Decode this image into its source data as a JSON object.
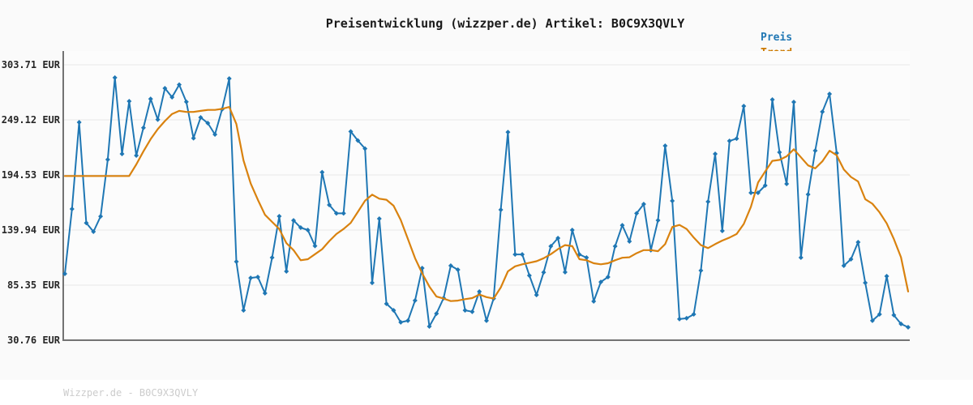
{
  "header": {
    "title": "Preisentwicklung (wizzper.de) Artikel: B0C9X3QVLY"
  },
  "footer": {
    "text": "Wizzper.de - B0C9X3QVLY"
  },
  "colors": {
    "background": "#fafafa",
    "plot_background": "#fcfcfc",
    "price_line": "#1f77b4",
    "trend_line": "#d9820f",
    "legend_price_text": "#1f77b4",
    "legend_trend_text": "#cc7a00",
    "grid": "#e7e7e7",
    "spine": "#737373",
    "title_text": "#1a1a1a",
    "tick_text": "#262626",
    "footer_text": "#cccccc",
    "footer_band": "#ffffff"
  },
  "chart_data": {
    "type": "line",
    "title": "Preisentwicklung (wizzper.de) Artikel: B0C9X3QVLY",
    "xlabel": "",
    "ylabel": "",
    "ylim": [
      30.76,
      303.71
    ],
    "grid": "horizontal",
    "legend_position": "top-right",
    "grid_color": "#e7e7e7",
    "spine_color": "#737373",
    "y_ticks": [
      {
        "label": "303.71 EUR",
        "value": 303.71
      },
      {
        "label": "249.12 EUR",
        "value": 249.12
      },
      {
        "label": "194.53 EUR",
        "value": 194.53
      },
      {
        "label": "139.94 EUR",
        "value": 139.94
      },
      {
        "label": "85.35 EUR",
        "value": 85.35
      },
      {
        "label": "30.76 EUR",
        "value": 30.76
      }
    ],
    "legend": [
      {
        "name": "Preis",
        "color": "#1f77b4"
      },
      {
        "name": "Trend",
        "color": "#cc7a00"
      }
    ],
    "series": [
      {
        "name": "Preis",
        "color": "#1f77b4",
        "width": 2,
        "markers": true,
        "values": [
          96.6,
          160.8,
          246.7,
          147.0,
          138.3,
          153.5,
          209.8,
          291.0,
          215.4,
          267.6,
          213.8,
          241.3,
          269.9,
          249.4,
          280.4,
          271.6,
          284.0,
          267.0,
          231.0,
          251.5,
          245.9,
          234.7,
          259.6,
          290.1,
          108.6,
          60.4,
          92.5,
          93.4,
          77.3,
          112.6,
          153.6,
          99.0,
          149.5,
          142.3,
          139.9,
          124.2,
          197.2,
          164.8,
          156.5,
          156.5,
          237.6,
          228.6,
          220.6,
          87.7,
          151.2,
          66.9,
          60.4,
          48.5,
          50.1,
          70.1,
          102.2,
          44.4,
          57.2,
          72.5,
          104.6,
          100.6,
          60.4,
          59.0,
          78.9,
          50.1,
          72.0,
          160.0,
          237.0,
          115.8,
          115.8,
          94.9,
          75.6,
          98.0,
          123.9,
          131.9,
          98.2,
          139.9,
          115.8,
          112.6,
          69.3,
          88.5,
          93.4,
          123.9,
          144.7,
          128.7,
          156.5,
          165.6,
          120.0,
          149.6,
          223.4,
          168.8,
          51.7,
          52.5,
          56.4,
          99.8,
          168.0,
          215.4,
          139.1,
          228.2,
          230.6,
          262.8,
          176.9,
          176.9,
          184.1,
          269.2,
          217.0,
          185.7,
          266.8,
          112.6,
          175.3,
          218.6,
          257.1,
          274.8,
          216.2,
          104.6,
          111.0,
          127.9,
          87.7,
          50.1,
          56.4,
          94.2,
          55.6,
          46.9,
          43.6
        ]
      },
      {
        "name": "Trend",
        "color": "#d9820f",
        "width": 2.2,
        "markers": false,
        "values": [
          193.5,
          193.5,
          193.5,
          193.5,
          193.5,
          193.5,
          193.5,
          193.5,
          193.5,
          193.5,
          205,
          218,
          230,
          240,
          248,
          255,
          258,
          257,
          257,
          258,
          259,
          259,
          260,
          262,
          245,
          209,
          186,
          170,
          155,
          148,
          141,
          127,
          120,
          110,
          111,
          116,
          121,
          129,
          136,
          141,
          147,
          158,
          169,
          175,
          171,
          170,
          164,
          150,
          131,
          112,
          97,
          84,
          74,
          72,
          69.5,
          70,
          71.5,
          72.5,
          76,
          73.5,
          72,
          83,
          99,
          104,
          106,
          107.5,
          109,
          112,
          116,
          121,
          125,
          124,
          111,
          110,
          107,
          106,
          107,
          110,
          112.5,
          113,
          117,
          120,
          120,
          119,
          126,
          143,
          145,
          141,
          132.5,
          125,
          122,
          126,
          129.5,
          132.5,
          136,
          146,
          163,
          187,
          198,
          208.5,
          209.5,
          213,
          220,
          212,
          204,
          201,
          208,
          218.5,
          214,
          200,
          192.5,
          188,
          170.5,
          166,
          157.5,
          146.5,
          131,
          113,
          79
        ]
      }
    ]
  }
}
